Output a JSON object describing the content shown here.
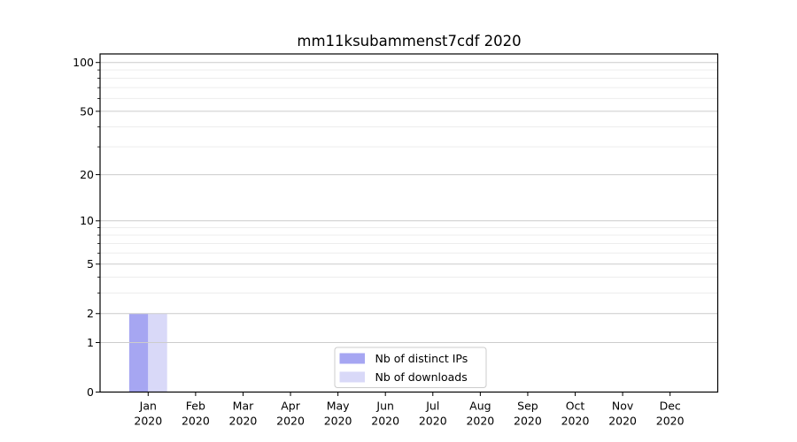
{
  "chart_data": {
    "type": "bar",
    "title": "mm11ksubammenst7cdf 2020",
    "year": "2020",
    "months": [
      "Jan",
      "Feb",
      "Mar",
      "Apr",
      "May",
      "Jun",
      "Jul",
      "Aug",
      "Sep",
      "Oct",
      "Nov",
      "Dec"
    ],
    "categories": [
      "Jan 2020",
      "Feb 2020",
      "Mar 2020",
      "Apr 2020",
      "May 2020",
      "Jun 2020",
      "Jul 2020",
      "Aug 2020",
      "Sep 2020",
      "Oct 2020",
      "Nov 2020",
      "Dec 2020"
    ],
    "series": [
      {
        "name": "Nb of distinct IPs",
        "color": "#a6a6f2",
        "values": [
          2,
          0,
          0,
          0,
          0,
          0,
          0,
          0,
          0,
          0,
          0,
          0
        ]
      },
      {
        "name": "Nb of downloads",
        "color": "#d9d9f8",
        "values": [
          2,
          0,
          0,
          0,
          0,
          0,
          0,
          0,
          0,
          0,
          0,
          0
        ]
      }
    ],
    "xlabel": "",
    "ylabel": "",
    "yscale": "log1p",
    "ylim": [
      0,
      113
    ],
    "yticks": [
      0,
      1,
      2,
      5,
      10,
      20,
      50,
      100
    ],
    "yticks_minor": [
      3,
      4,
      6,
      7,
      8,
      9,
      30,
      40,
      60,
      70,
      80,
      90
    ],
    "grid": true,
    "legend": {
      "position": "lower center",
      "entries": [
        "Nb of distinct IPs",
        "Nb of downloads"
      ]
    }
  },
  "colors": {
    "background": "#ffffff",
    "spine": "#000000",
    "tick": "#000000",
    "text": "#000000",
    "grid_major": "#cccccc",
    "grid_minor": "#ededed",
    "legend_border": "#cccccc",
    "legend_bg": "#ffffff"
  }
}
